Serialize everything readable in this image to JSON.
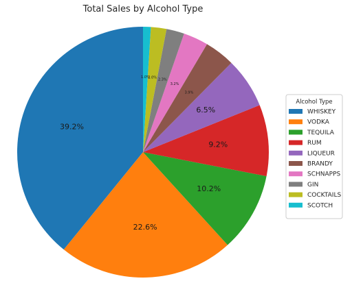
{
  "chart_data": {
    "type": "pie",
    "title": "Total Sales by Alcohol Type",
    "start_angle_deg": 90,
    "direction": "counterclockwise",
    "legend": {
      "title": "Alcohol Type",
      "placement": "center-right"
    },
    "slices": [
      {
        "label": "WHISKEY",
        "value": 39.2,
        "pct_label": "39.2%",
        "color": "#1f77b4"
      },
      {
        "label": "VODKA",
        "value": 22.6,
        "pct_label": "22.6%",
        "color": "#ff7f0e"
      },
      {
        "label": "TEQUILA",
        "value": 10.2,
        "pct_label": "10.2%",
        "color": "#2ca02c"
      },
      {
        "label": "RUM",
        "value": 9.2,
        "pct_label": "9.2%",
        "color": "#d62728"
      },
      {
        "label": "LIQUEUR",
        "value": 6.5,
        "pct_label": "6.5%",
        "color": "#9467bd"
      },
      {
        "label": "BRANDY",
        "value": 3.9,
        "pct_label": "3.9%",
        "color": "#8c564b"
      },
      {
        "label": "SCHNAPPS",
        "value": 3.2,
        "pct_label": "3.2%",
        "color": "#e377c2"
      },
      {
        "label": "GIN",
        "value": 2.3,
        "pct_label": "2.3%",
        "color": "#7f7f7f"
      },
      {
        "label": "COCKTAILS",
        "value": 2.0,
        "pct_label": "2.0%",
        "color": "#bcbd22"
      },
      {
        "label": "SCOTCH",
        "value": 1.0,
        "pct_label": "1.0%",
        "color": "#17becf"
      }
    ]
  }
}
